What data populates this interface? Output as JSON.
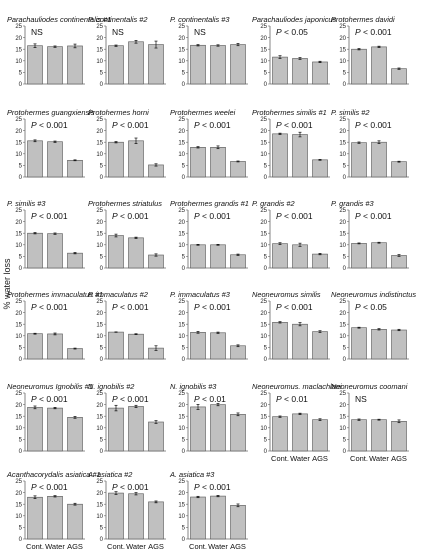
{
  "figure": {
    "ylabel": "% water loss"
  },
  "chart_data": {
    "type": "bar",
    "categories": [
      "Cont.",
      "Water",
      "AGS"
    ],
    "ylim": [
      0,
      25
    ],
    "yticks": [
      0,
      5,
      10,
      15,
      20,
      25
    ],
    "grid": false,
    "bar_color": "#c0c0c0",
    "ylabel": "% water loss",
    "panels": [
      {
        "title": "Parachauliodes continentalis #1",
        "stat": "NS",
        "values": [
          16.5,
          16.1,
          16.4
        ],
        "errors": [
          0.8,
          0.3,
          0.8
        ]
      },
      {
        "title": "P. continentalis #2",
        "stat": "NS",
        "values": [
          16.5,
          18.2,
          17.0
        ],
        "errors": [
          0.3,
          0.6,
          1.5
        ]
      },
      {
        "title": "P. continentalis #3",
        "stat": "NS",
        "values": [
          16.7,
          16.6,
          17.0
        ],
        "errors": [
          0.3,
          0.3,
          0.5
        ]
      },
      {
        "title": "Parachauliodes japonicus",
        "stat": "P < 0.05",
        "values": [
          11.6,
          11.0,
          9.5
        ],
        "errors": [
          0.6,
          0.4,
          0.3
        ]
      },
      {
        "title": "Protohermes davidi",
        "stat": "P < 0.001",
        "values": [
          15.0,
          16.0,
          6.6
        ],
        "errors": [
          0.3,
          0.3,
          0.3
        ]
      },
      {
        "title": "Protohermes guangxiensis",
        "stat": "P < 0.001",
        "values": [
          15.6,
          15.2,
          7.2
        ],
        "errors": [
          0.4,
          0.3,
          0.2
        ]
      },
      {
        "title": "Protohermes horni",
        "stat": "P < 0.001",
        "values": [
          15.0,
          15.6,
          5.2
        ],
        "errors": [
          0.3,
          1.2,
          0.5
        ]
      },
      {
        "title": "Protohermes weelei",
        "stat": "P < 0.001",
        "values": [
          12.8,
          12.8,
          6.7
        ],
        "errors": [
          0.3,
          0.6,
          0.2
        ]
      },
      {
        "title": "Protohermes similis #1",
        "stat": "P < 0.001",
        "values": [
          18.6,
          18.3,
          7.4
        ],
        "errors": [
          0.3,
          1.0,
          0.2
        ]
      },
      {
        "title": "P. similis #2",
        "stat": "P < 0.001",
        "values": [
          14.8,
          15.0,
          6.6
        ],
        "errors": [
          0.3,
          0.6,
          0.2
        ]
      },
      {
        "title": "P. similis #3",
        "stat": "P < 0.001",
        "values": [
          15.0,
          14.8,
          6.4
        ],
        "errors": [
          0.3,
          0.3,
          0.3
        ]
      },
      {
        "title": "Protohermes striatulus",
        "stat": "P < 0.001",
        "values": [
          14.0,
          13.0,
          5.6
        ],
        "errors": [
          0.6,
          0.3,
          0.5
        ]
      },
      {
        "title": "Protohermes grandis #1",
        "stat": "P < 0.001",
        "values": [
          10.0,
          10.0,
          5.7
        ],
        "errors": [
          0.2,
          0.2,
          0.3
        ]
      },
      {
        "title": "P. grandis #2",
        "stat": "P < 0.001",
        "values": [
          10.5,
          10.0,
          6.0
        ],
        "errors": [
          0.4,
          0.7,
          0.3
        ]
      },
      {
        "title": "P. grandis #3",
        "stat": "P < 0.001",
        "values": [
          10.6,
          10.9,
          5.4
        ],
        "errors": [
          0.2,
          0.2,
          0.4
        ]
      },
      {
        "title": "Protohermes immaculatus #1",
        "stat": "P < 0.001",
        "values": [
          10.9,
          10.8,
          4.5
        ],
        "errors": [
          0.2,
          0.4,
          0.2
        ]
      },
      {
        "title": "P. immaculatus #2",
        "stat": "P < 0.001",
        "values": [
          11.6,
          10.7,
          4.7
        ],
        "errors": [
          0.1,
          0.2,
          1.0
        ]
      },
      {
        "title": "P. immaculatus #3",
        "stat": "P < 0.001",
        "values": [
          11.5,
          11.3,
          5.7
        ],
        "errors": [
          0.4,
          0.3,
          0.4
        ]
      },
      {
        "title": "Neoneuromus similis",
        "stat": "P < 0.001",
        "values": [
          15.8,
          15.0,
          11.8
        ],
        "errors": [
          0.3,
          0.7,
          0.4
        ]
      },
      {
        "title": "Neoneuromus indistinctus",
        "stat": "P < 0.05",
        "values": [
          13.5,
          12.8,
          12.5
        ],
        "errors": [
          0.2,
          0.3,
          0.3
        ]
      },
      {
        "title": "Neoneuromus Ignobilis #1",
        "stat": "P < 0.001",
        "values": [
          18.8,
          18.5,
          14.5
        ],
        "errors": [
          0.6,
          0.3,
          0.4
        ]
      },
      {
        "title": "N. ignobilis #2",
        "stat": "P < 0.001",
        "values": [
          18.5,
          19.2,
          12.5
        ],
        "errors": [
          1.2,
          0.5,
          0.6
        ]
      },
      {
        "title": "N. ignobilis #3",
        "stat": "P < 0.01",
        "values": [
          19.0,
          20.0,
          15.8
        ],
        "errors": [
          1.1,
          0.5,
          0.6
        ]
      },
      {
        "title": "Neoneuromus. maclachlani",
        "stat": "P < 0.01",
        "values": [
          14.8,
          16.0,
          13.5
        ],
        "errors": [
          0.3,
          0.3,
          0.4
        ]
      },
      {
        "title": "Neoneuromus coomani",
        "stat": "NS",
        "values": [
          13.5,
          13.5,
          12.8
        ],
        "errors": [
          0.3,
          0.2,
          0.6
        ]
      },
      {
        "title": "Acanthacorydalis asiatica #1",
        "stat": "P < 0.001",
        "values": [
          18.0,
          18.4,
          15.0
        ],
        "errors": [
          0.6,
          0.3,
          0.4
        ]
      },
      {
        "title": "A. asiatica #2",
        "stat": "P < 0.001",
        "values": [
          19.8,
          19.5,
          16.0
        ],
        "errors": [
          0.6,
          0.5,
          0.4
        ]
      },
      {
        "title": "A. asiatica #3",
        "stat": "P < 0.001",
        "values": [
          18.1,
          18.5,
          14.5
        ],
        "errors": [
          0.3,
          0.3,
          0.6
        ]
      }
    ]
  }
}
